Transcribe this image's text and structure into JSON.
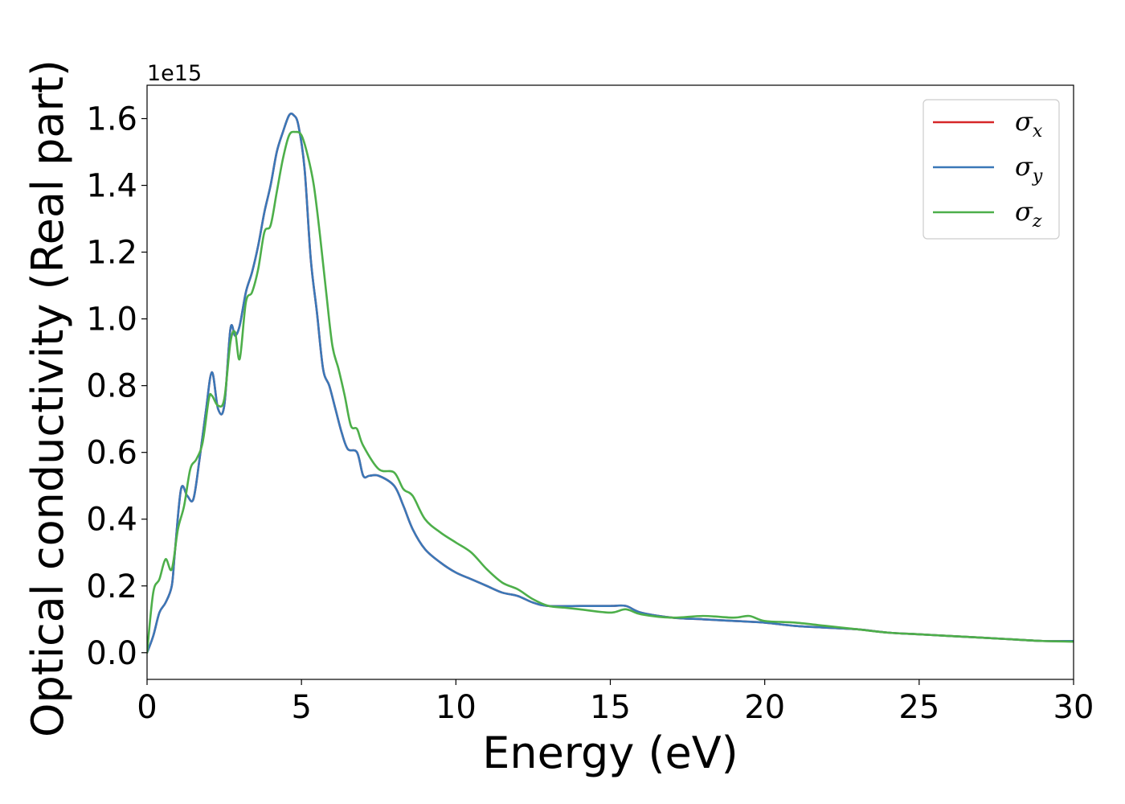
{
  "chart_data": {
    "type": "line",
    "xlabel": "Energy (eV)",
    "ylabel": "Optical conductivity (Real part)",
    "y_offset_label": "1e15",
    "xlim": [
      0,
      30
    ],
    "ylim": [
      -0.08,
      1.7
    ],
    "xticks": [
      0,
      5,
      10,
      15,
      20,
      25,
      30
    ],
    "yticks": [
      0.0,
      0.2,
      0.4,
      0.6,
      0.8,
      1.0,
      1.2,
      1.4,
      1.6
    ],
    "xtick_labels": [
      "0",
      "5",
      "10",
      "15",
      "20",
      "25",
      "30"
    ],
    "ytick_labels": [
      "0.0",
      "0.2",
      "0.4",
      "0.6",
      "0.8",
      "1.0",
      "1.2",
      "1.4",
      "1.6"
    ],
    "grid": false,
    "legend_position": "top-right",
    "series": [
      {
        "name": "σ",
        "subscript": "x",
        "color": "#d62728",
        "x": [
          0,
          0.2,
          0.4,
          0.6,
          0.8,
          0.9,
          1.1,
          1.3,
          1.5,
          1.7,
          1.9,
          2.1,
          2.3,
          2.5,
          2.7,
          2.85,
          3.0,
          3.2,
          3.4,
          3.6,
          3.8,
          4.0,
          4.2,
          4.4,
          4.6,
          4.75,
          4.9,
          5.1,
          5.3,
          5.5,
          5.7,
          5.9,
          6.1,
          6.3,
          6.5,
          6.8,
          7.0,
          7.2,
          7.5,
          8.0,
          8.3,
          8.6,
          9.0,
          9.5,
          10.0,
          10.5,
          11.0,
          11.5,
          12.0,
          12.5,
          13.0,
          14.0,
          15.0,
          15.5,
          16.0,
          17.0,
          18.0,
          19.0,
          20.0,
          21.0,
          22.0,
          23.0,
          24.0,
          25.0,
          26.0,
          27.0,
          28.0,
          29.0,
          30.0
        ],
        "values": [
          0.0,
          0.05,
          0.12,
          0.15,
          0.2,
          0.3,
          0.49,
          0.47,
          0.46,
          0.58,
          0.72,
          0.84,
          0.73,
          0.74,
          0.97,
          0.95,
          0.98,
          1.08,
          1.14,
          1.22,
          1.32,
          1.4,
          1.5,
          1.56,
          1.61,
          1.61,
          1.58,
          1.45,
          1.18,
          1.02,
          0.85,
          0.8,
          0.73,
          0.66,
          0.61,
          0.6,
          0.53,
          0.53,
          0.53,
          0.5,
          0.44,
          0.37,
          0.31,
          0.27,
          0.24,
          0.22,
          0.2,
          0.18,
          0.17,
          0.15,
          0.14,
          0.14,
          0.14,
          0.14,
          0.12,
          0.105,
          0.1,
          0.095,
          0.09,
          0.08,
          0.075,
          0.07,
          0.06,
          0.055,
          0.05,
          0.045,
          0.04,
          0.035,
          0.035
        ]
      },
      {
        "name": "σ",
        "subscript": "y",
        "color": "#3a78b8",
        "x": [
          0,
          0.2,
          0.4,
          0.6,
          0.8,
          0.9,
          1.1,
          1.3,
          1.5,
          1.7,
          1.9,
          2.1,
          2.3,
          2.5,
          2.7,
          2.85,
          3.0,
          3.2,
          3.4,
          3.6,
          3.8,
          4.0,
          4.2,
          4.4,
          4.6,
          4.75,
          4.9,
          5.1,
          5.3,
          5.5,
          5.7,
          5.9,
          6.1,
          6.3,
          6.5,
          6.8,
          7.0,
          7.2,
          7.5,
          8.0,
          8.3,
          8.6,
          9.0,
          9.5,
          10.0,
          10.5,
          11.0,
          11.5,
          12.0,
          12.5,
          13.0,
          14.0,
          15.0,
          15.5,
          16.0,
          17.0,
          18.0,
          19.0,
          20.0,
          21.0,
          22.0,
          23.0,
          24.0,
          25.0,
          26.0,
          27.0,
          28.0,
          29.0,
          30.0
        ],
        "values": [
          0.0,
          0.05,
          0.12,
          0.15,
          0.2,
          0.3,
          0.49,
          0.47,
          0.46,
          0.58,
          0.72,
          0.84,
          0.73,
          0.74,
          0.97,
          0.95,
          0.98,
          1.08,
          1.14,
          1.22,
          1.32,
          1.4,
          1.5,
          1.56,
          1.61,
          1.61,
          1.58,
          1.45,
          1.18,
          1.02,
          0.85,
          0.8,
          0.73,
          0.66,
          0.61,
          0.6,
          0.53,
          0.53,
          0.53,
          0.5,
          0.44,
          0.37,
          0.31,
          0.27,
          0.24,
          0.22,
          0.2,
          0.18,
          0.17,
          0.15,
          0.14,
          0.14,
          0.14,
          0.14,
          0.12,
          0.105,
          0.1,
          0.095,
          0.09,
          0.08,
          0.075,
          0.07,
          0.06,
          0.055,
          0.05,
          0.045,
          0.04,
          0.035,
          0.035
        ]
      },
      {
        "name": "σ",
        "subscript": "z",
        "color": "#4daf4a",
        "x": [
          0,
          0.2,
          0.4,
          0.6,
          0.8,
          1.0,
          1.2,
          1.4,
          1.6,
          1.8,
          2.0,
          2.1,
          2.3,
          2.5,
          2.7,
          2.85,
          3.0,
          3.2,
          3.4,
          3.6,
          3.8,
          4.0,
          4.2,
          4.4,
          4.6,
          4.8,
          5.0,
          5.2,
          5.4,
          5.6,
          5.8,
          6.0,
          6.2,
          6.4,
          6.6,
          6.8,
          7.0,
          7.5,
          8.0,
          8.3,
          8.6,
          9.0,
          9.5,
          10.0,
          10.5,
          11.0,
          11.5,
          12.0,
          12.5,
          13.0,
          13.5,
          14.0,
          15.0,
          15.5,
          16.0,
          17.0,
          18.0,
          19.0,
          19.5,
          20.0,
          21.0,
          22.0,
          23.0,
          24.0,
          25.0,
          26.0,
          27.0,
          28.0,
          29.0,
          30.0
        ],
        "values": [
          0.0,
          0.18,
          0.22,
          0.28,
          0.25,
          0.37,
          0.44,
          0.55,
          0.58,
          0.63,
          0.76,
          0.77,
          0.74,
          0.76,
          0.93,
          0.96,
          0.88,
          1.05,
          1.08,
          1.15,
          1.26,
          1.28,
          1.38,
          1.48,
          1.55,
          1.56,
          1.55,
          1.49,
          1.4,
          1.25,
          1.08,
          0.92,
          0.85,
          0.77,
          0.68,
          0.67,
          0.62,
          0.55,
          0.54,
          0.49,
          0.47,
          0.4,
          0.36,
          0.33,
          0.3,
          0.25,
          0.21,
          0.19,
          0.16,
          0.14,
          0.135,
          0.13,
          0.12,
          0.13,
          0.115,
          0.105,
          0.11,
          0.105,
          0.11,
          0.095,
          0.09,
          0.08,
          0.07,
          0.06,
          0.055,
          0.05,
          0.045,
          0.04,
          0.035,
          0.033
        ]
      }
    ]
  }
}
